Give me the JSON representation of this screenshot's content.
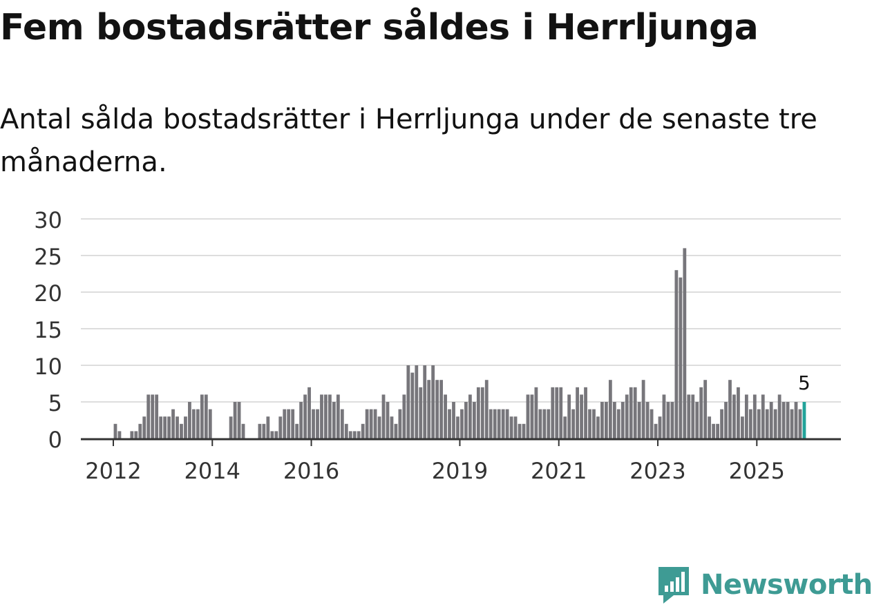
{
  "title": "Fem bostadsrätter såldes i Herrljunga",
  "subtitle": "Antal sålda bostadsrätter i Herrljunga under de senaste tre månaderna.",
  "logo": {
    "text": "Newsworthy",
    "color": "#3e9b94"
  },
  "colors": {
    "bar": "#77767b",
    "highlight": "#22a39a",
    "grid": "#dddddd",
    "axis": "#333333"
  },
  "chart_data": {
    "type": "bar",
    "ylim": [
      0,
      30
    ],
    "yticks": [
      0,
      5,
      10,
      15,
      20,
      25,
      30
    ],
    "xticks": [
      {
        "label": "2012",
        "index": 1
      },
      {
        "label": "2014",
        "index": 25
      },
      {
        "label": "2016",
        "index": 49
      },
      {
        "label": "2019",
        "index": 85
      },
      {
        "label": "2021",
        "index": 109
      },
      {
        "label": "2023",
        "index": 133
      },
      {
        "label": "2025",
        "index": 157
      }
    ],
    "values": [
      0,
      2,
      1,
      0,
      0,
      1,
      1,
      2,
      3,
      6,
      6,
      6,
      3,
      3,
      3,
      4,
      3,
      2,
      3,
      5,
      4,
      4,
      6,
      6,
      4,
      0,
      0,
      0,
      0,
      3,
      5,
      5,
      2,
      0,
      0,
      0,
      2,
      2,
      3,
      1,
      1,
      3,
      4,
      4,
      4,
      2,
      5,
      6,
      7,
      4,
      4,
      6,
      6,
      6,
      5,
      6,
      4,
      2,
      1,
      1,
      1,
      2,
      4,
      4,
      4,
      3,
      6,
      5,
      3,
      2,
      4,
      6,
      10,
      9,
      10,
      7,
      10,
      8,
      10,
      8,
      8,
      6,
      4,
      5,
      3,
      4,
      5,
      6,
      5,
      7,
      7,
      8,
      4,
      4,
      4,
      4,
      4,
      3,
      3,
      2,
      2,
      6,
      6,
      7,
      4,
      4,
      4,
      7,
      7,
      7,
      3,
      6,
      4,
      7,
      6,
      7,
      4,
      4,
      3,
      5,
      5,
      8,
      5,
      4,
      5,
      6,
      7,
      7,
      5,
      8,
      5,
      4,
      2,
      3,
      6,
      5,
      5,
      23,
      22,
      26,
      6,
      6,
      5,
      7,
      8,
      3,
      2,
      2,
      4,
      5,
      8,
      6,
      7,
      3,
      6,
      4,
      6,
      4,
      6,
      4,
      5,
      4,
      6,
      5,
      5,
      4,
      5,
      4,
      5
    ],
    "highlight_label": "5",
    "xlabel": "",
    "ylabel": ""
  }
}
